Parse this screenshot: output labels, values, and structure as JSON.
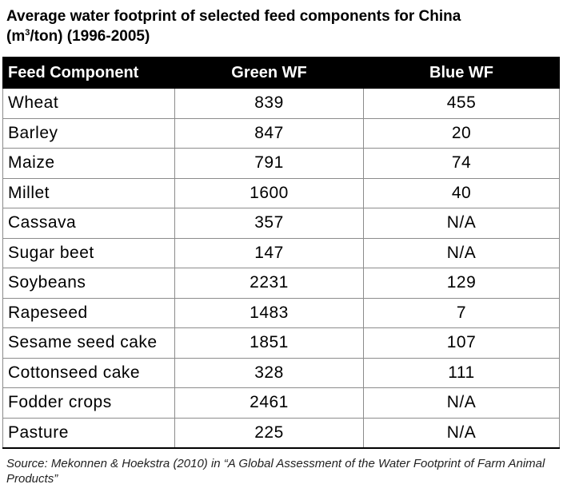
{
  "title": {
    "line1": "Average water footprint of selected feed components for China",
    "line2_pre": "(m",
    "line2_sup": "3",
    "line2_post": "/ton) (1996-2005)"
  },
  "chart_data": {
    "type": "table",
    "columns": [
      "Feed Component",
      "Green WF",
      "Blue WF"
    ],
    "rows": [
      [
        "Wheat",
        "839",
        "455"
      ],
      [
        "Barley",
        "847",
        "20"
      ],
      [
        "Maize",
        "791",
        "74"
      ],
      [
        "Millet",
        "1600",
        "40"
      ],
      [
        "Cassava",
        "357",
        "N/A"
      ],
      [
        "Sugar beet",
        "147",
        "N/A"
      ],
      [
        "Soybeans",
        "2231",
        "129"
      ],
      [
        "Rapeseed",
        "1483",
        "7"
      ],
      [
        "Sesame seed cake",
        "1851",
        "107"
      ],
      [
        "Cottonseed cake",
        "328",
        "111"
      ],
      [
        "Fodder crops",
        "2461",
        "N/A"
      ],
      [
        "Pasture",
        "225",
        "N/A"
      ]
    ]
  },
  "source": "Source: Mekonnen & Hoekstra (2010) in “A Global Assessment of the Water Footprint of Farm Animal Products”"
}
